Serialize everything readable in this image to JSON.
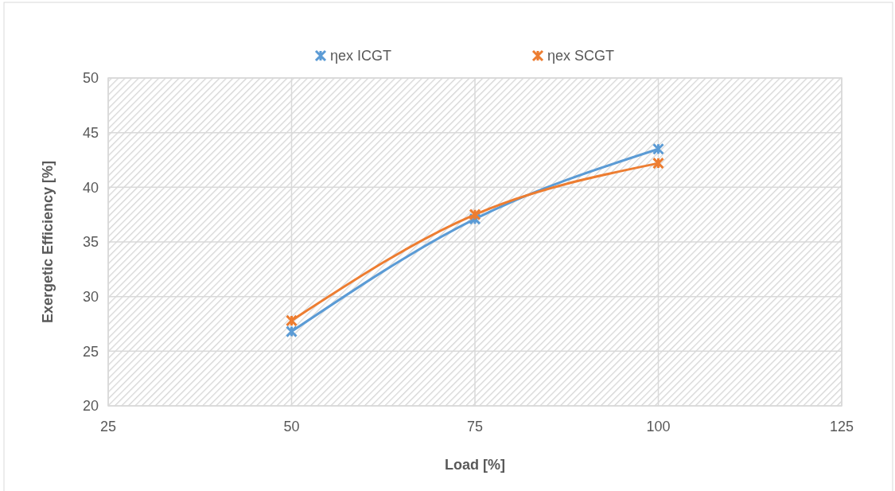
{
  "chart_data": {
    "type": "line",
    "xlabel": "Load [%]",
    "ylabel": "Exergetic Efficiency [%]",
    "x": [
      50,
      75,
      100
    ],
    "series": [
      {
        "name": "ηex ICGT",
        "color": "#5b9bd5",
        "values": [
          26.8,
          37.1,
          43.5
        ]
      },
      {
        "name": "ηex SCGT",
        "color": "#ed7d31",
        "values": [
          27.8,
          37.5,
          42.2
        ]
      }
    ],
    "xlim": [
      25,
      125
    ],
    "xticks": [
      25,
      50,
      75,
      100,
      125
    ],
    "ylim": [
      20,
      50
    ],
    "yticks": [
      20,
      25,
      30,
      35,
      40,
      45,
      50
    ],
    "grid": true,
    "legend": "top",
    "marker": "cross",
    "line_style": "solid"
  }
}
